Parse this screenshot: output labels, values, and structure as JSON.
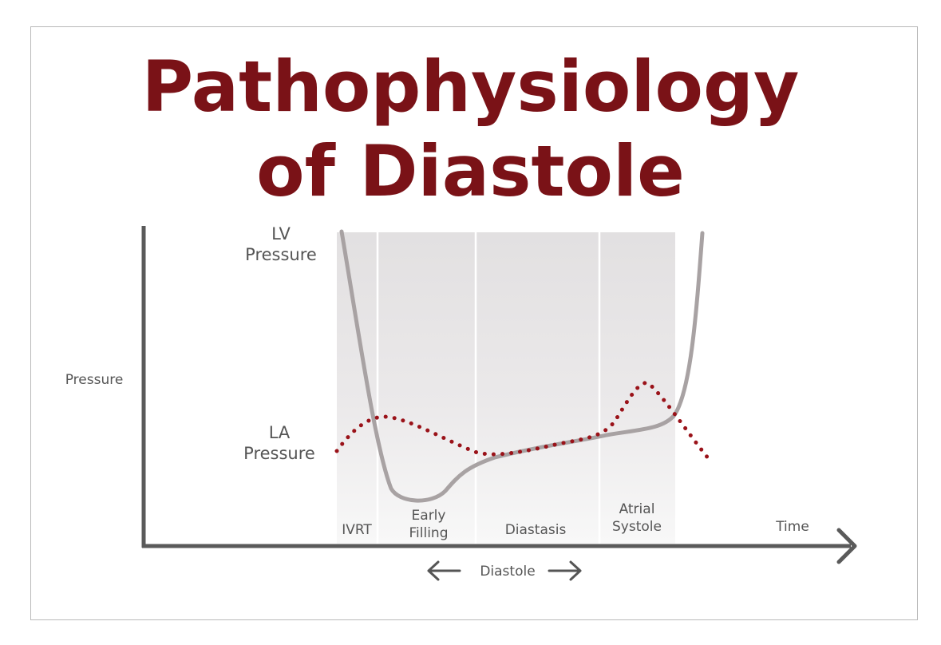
{
  "title": {
    "line1": "Pathophysiology",
    "line2": "of Diastole"
  },
  "axes": {
    "y_label": "Pressure",
    "x_label": "Time"
  },
  "curves": {
    "lv_label_line1": "LV",
    "lv_label_line2": "Pressure",
    "la_label_line1": "LA",
    "la_label_line2": "Pressure"
  },
  "phases": {
    "ivrt": "IVRT",
    "early_filling_line1": "Early",
    "early_filling_line2": "Filling",
    "diastasis": "Diastasis",
    "atrial_systole_line1": "Atrial",
    "atrial_systole_line2": "Systole"
  },
  "diastole_span_label": "Diastole",
  "colors": {
    "title": "#7a1217",
    "lv_curve": "#a8a2a3",
    "la_curve": "#9a1219",
    "axis": "#5a5a5a",
    "label_text": "#555555",
    "band": "#e6e4e5"
  }
}
